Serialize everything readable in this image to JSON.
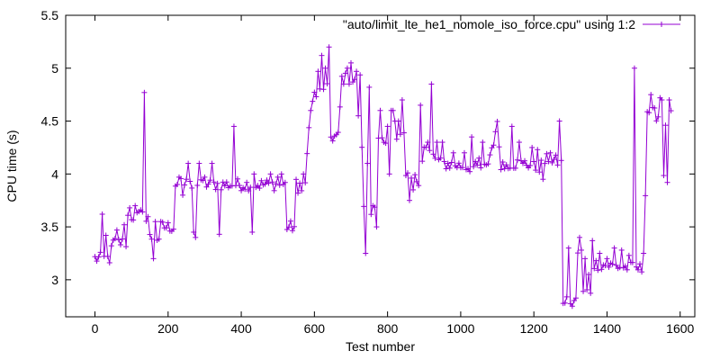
{
  "chart_data": {
    "type": "line",
    "title": "",
    "xlabel": "Test number",
    "ylabel": "CPU time (s)",
    "xlim": [
      -80,
      1640
    ],
    "ylim": [
      2.65,
      5.5
    ],
    "xticks": [
      0,
      200,
      400,
      600,
      800,
      1000,
      1200,
      1400,
      1600
    ],
    "yticks": [
      3,
      3.5,
      4,
      4.5,
      5,
      5.5
    ],
    "grid": false,
    "legend_position": "top-right",
    "series_color": "#9400D3",
    "marker": "plus",
    "series": [
      {
        "name": "\"auto/limit_lte_he1_nomole_iso_force.cpu\" using 1:2",
        "segments": [
          [
            0,
            3.2
          ],
          [
            40,
            3.2
          ],
          [
            50,
            3.35
          ],
          [
            85,
            3.35
          ],
          [
            90,
            3.6
          ],
          [
            145,
            3.6
          ],
          [
            150,
            3.4
          ],
          [
            175,
            3.4
          ],
          [
            180,
            3.5
          ],
          [
            215,
            3.5
          ],
          [
            220,
            3.9
          ],
          [
            520,
            3.9
          ],
          [
            525,
            3.5
          ],
          [
            545,
            3.5
          ],
          [
            550,
            3.9
          ],
          [
            575,
            3.9
          ],
          [
            585,
            4.45
          ],
          [
            600,
            4.75
          ],
          [
            640,
            4.8
          ],
          [
            645,
            4.35
          ],
          [
            665,
            4.35
          ],
          [
            675,
            4.9
          ],
          [
            725,
            4.9
          ],
          [
            735,
            3.65
          ],
          [
            765,
            3.65
          ],
          [
            775,
            4.35
          ],
          [
            845,
            4.35
          ],
          [
            850,
            3.95
          ],
          [
            885,
            3.95
          ],
          [
            900,
            4.25
          ],
          [
            945,
            4.1
          ],
          [
            1070,
            4.05
          ],
          [
            1100,
            4.45
          ],
          [
            1110,
            4.1
          ],
          [
            1180,
            4.1
          ],
          [
            1210,
            4.05
          ],
          [
            1240,
            4.15
          ],
          [
            1275,
            4.1
          ],
          [
            1280,
            2.8
          ],
          [
            1315,
            2.8
          ],
          [
            1320,
            3.25
          ],
          [
            1325,
            2.85
          ],
          [
            1355,
            2.9
          ],
          [
            1365,
            3.15
          ],
          [
            1500,
            3.1
          ],
          [
            1510,
            4.6
          ],
          [
            1540,
            4.55
          ],
          [
            1555,
            4.0
          ],
          [
            1560,
            4.5
          ],
          [
            1575,
            4.55
          ]
        ],
        "spikes": [
          [
            20,
            3.62
          ],
          [
            30,
            3.42
          ],
          [
            60,
            3.47
          ],
          [
            80,
            3.52
          ],
          [
            95,
            3.68
          ],
          [
            110,
            3.7
          ],
          [
            125,
            3.66
          ],
          [
            135,
            4.77
          ],
          [
            160,
            3.2
          ],
          [
            165,
            3.55
          ],
          [
            230,
            3.97
          ],
          [
            240,
            3.8
          ],
          [
            250,
            3.95
          ],
          [
            255,
            4.1
          ],
          [
            270,
            3.45
          ],
          [
            275,
            3.4
          ],
          [
            285,
            4.1
          ],
          [
            300,
            3.97
          ],
          [
            320,
            4.1
          ],
          [
            340,
            3.43
          ],
          [
            380,
            4.45
          ],
          [
            430,
            3.45
          ],
          [
            435,
            4.0
          ],
          [
            480,
            4.0
          ],
          [
            500,
            3.97
          ],
          [
            510,
            4.0
          ],
          [
            555,
            3.82
          ],
          [
            570,
            4.0
          ],
          [
            590,
            4.6
          ],
          [
            610,
            4.97
          ],
          [
            620,
            5.12
          ],
          [
            625,
            4.8
          ],
          [
            630,
            5.0
          ],
          [
            640,
            5.2
          ],
          [
            690,
            5.0
          ],
          [
            700,
            5.05
          ],
          [
            715,
            4.97
          ],
          [
            720,
            4.55
          ],
          [
            740,
            3.25
          ],
          [
            745,
            4.1
          ],
          [
            750,
            4.82
          ],
          [
            760,
            3.7
          ],
          [
            770,
            3.5
          ],
          [
            780,
            4.6
          ],
          [
            790,
            4.3
          ],
          [
            800,
            4.45
          ],
          [
            805,
            4.0
          ],
          [
            810,
            4.6
          ],
          [
            815,
            4.6
          ],
          [
            820,
            4.5
          ],
          [
            830,
            4.5
          ],
          [
            840,
            4.7
          ],
          [
            860,
            3.75
          ],
          [
            870,
            3.85
          ],
          [
            890,
            4.65
          ],
          [
            910,
            4.3
          ],
          [
            920,
            4.85
          ],
          [
            935,
            4.3
          ],
          [
            950,
            4.3
          ],
          [
            980,
            4.2
          ],
          [
            1010,
            4.2
          ],
          [
            1030,
            4.35
          ],
          [
            1050,
            4.15
          ],
          [
            1060,
            4.3
          ],
          [
            1095,
            4.4
          ],
          [
            1120,
            4.05
          ],
          [
            1140,
            4.45
          ],
          [
            1160,
            4.3
          ],
          [
            1170,
            4.1
          ],
          [
            1195,
            4.25
          ],
          [
            1210,
            4.23
          ],
          [
            1225,
            3.95
          ],
          [
            1245,
            4.2
          ],
          [
            1270,
            4.5
          ],
          [
            1278,
            4.35
          ],
          [
            1285,
            2.78
          ],
          [
            1295,
            3.3
          ],
          [
            1305,
            2.75
          ],
          [
            1325,
            3.4
          ],
          [
            1330,
            3.28
          ],
          [
            1340,
            3.2
          ],
          [
            1350,
            3.05
          ],
          [
            1360,
            3.37
          ],
          [
            1380,
            3.25
          ],
          [
            1400,
            3.2
          ],
          [
            1420,
            3.3
          ],
          [
            1440,
            3.28
          ],
          [
            1460,
            3.23
          ],
          [
            1475,
            5.0
          ],
          [
            1500,
            3.25
          ],
          [
            1520,
            4.75
          ],
          [
            1545,
            4.72
          ],
          [
            1550,
            4.7
          ],
          [
            1565,
            3.92
          ],
          [
            1570,
            4.7
          ]
        ]
      }
    ]
  }
}
